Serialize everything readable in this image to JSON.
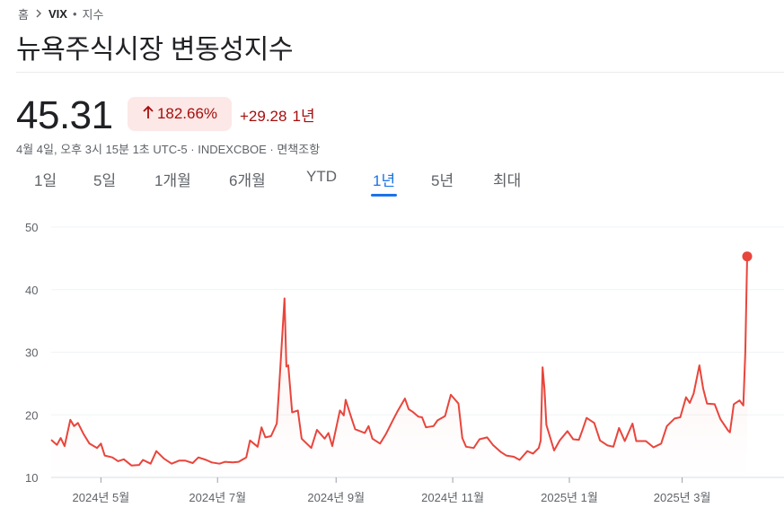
{
  "breadcrumb": {
    "home": "홈",
    "symbol": "VIX",
    "sep": "•",
    "category": "지수"
  },
  "title": "뉴욕주식시장 변동성지수",
  "quote": {
    "price": "45.31",
    "percent_change": "182.66%",
    "change": "+29.28",
    "period": "1년",
    "meta": "4월 4일, 오후 3시 15분 1초 UTC-5 · INDEXCBOE · 면책조항"
  },
  "tabs": [
    "1일",
    "5일",
    "1개월",
    "6개월",
    "YTD",
    "1년",
    "5년",
    "최대"
  ],
  "active_tab": "1년",
  "colors": {
    "line": "#e8453c",
    "accent": "#1a73e8",
    "negative_text": "#a50e0e",
    "badge_bg": "#fce8e6"
  },
  "icons": {
    "breadcrumb_separator": "chevron-right-icon",
    "change_direction": "arrow-up-icon"
  },
  "chart_data": {
    "type": "line",
    "ylim": [
      10,
      50
    ],
    "yticks": [
      10,
      20,
      30,
      40,
      50
    ],
    "xticks": [
      {
        "label": "2024년 5월",
        "date": "2024-05-01"
      },
      {
        "label": "2024년 7월",
        "date": "2024-07-01"
      },
      {
        "label": "2024년 9월",
        "date": "2024-09-01"
      },
      {
        "label": "2024년 11월",
        "date": "2024-11-01"
      },
      {
        "label": "2025년 1월",
        "date": "2025-01-01"
      },
      {
        "label": "2025년 3월",
        "date": "2025-03-01"
      }
    ],
    "grid": true,
    "end_marker": true,
    "series": [
      {
        "points": [
          [
            "2024-04-05",
            16.0
          ],
          [
            "2024-04-08",
            15.2
          ],
          [
            "2024-04-10",
            16.3
          ],
          [
            "2024-04-12",
            15.0
          ],
          [
            "2024-04-15",
            19.2
          ],
          [
            "2024-04-17",
            18.2
          ],
          [
            "2024-04-19",
            18.7
          ],
          [
            "2024-04-22",
            16.9
          ],
          [
            "2024-04-25",
            15.4
          ],
          [
            "2024-04-29",
            14.7
          ],
          [
            "2024-05-01",
            15.4
          ],
          [
            "2024-05-03",
            13.5
          ],
          [
            "2024-05-07",
            13.2
          ],
          [
            "2024-05-10",
            12.6
          ],
          [
            "2024-05-13",
            12.9
          ],
          [
            "2024-05-15",
            12.4
          ],
          [
            "2024-05-17",
            11.9
          ],
          [
            "2024-05-21",
            12.0
          ],
          [
            "2024-05-23",
            12.8
          ],
          [
            "2024-05-27",
            12.2
          ],
          [
            "2024-05-30",
            14.2
          ],
          [
            "2024-06-03",
            13.0
          ],
          [
            "2024-06-07",
            12.2
          ],
          [
            "2024-06-11",
            12.7
          ],
          [
            "2024-06-14",
            12.7
          ],
          [
            "2024-06-18",
            12.3
          ],
          [
            "2024-06-21",
            13.2
          ],
          [
            "2024-06-25",
            12.8
          ],
          [
            "2024-06-28",
            12.4
          ],
          [
            "2024-07-02",
            12.2
          ],
          [
            "2024-07-05",
            12.5
          ],
          [
            "2024-07-09",
            12.4
          ],
          [
            "2024-07-12",
            12.5
          ],
          [
            "2024-07-16",
            13.2
          ],
          [
            "2024-07-18",
            15.9
          ],
          [
            "2024-07-22",
            14.9
          ],
          [
            "2024-07-24",
            18.0
          ],
          [
            "2024-07-26",
            16.4
          ],
          [
            "2024-07-29",
            16.6
          ],
          [
            "2024-08-01",
            18.6
          ],
          [
            "2024-08-02",
            23.4
          ],
          [
            "2024-08-05",
            38.6
          ],
          [
            "2024-08-06",
            27.7
          ],
          [
            "2024-08-07",
            27.9
          ],
          [
            "2024-08-09",
            20.4
          ],
          [
            "2024-08-12",
            20.7
          ],
          [
            "2024-08-14",
            16.2
          ],
          [
            "2024-08-19",
            14.7
          ],
          [
            "2024-08-22",
            17.6
          ],
          [
            "2024-08-26",
            16.2
          ],
          [
            "2024-08-28",
            17.1
          ],
          [
            "2024-08-30",
            15.0
          ],
          [
            "2024-09-03",
            20.7
          ],
          [
            "2024-09-05",
            19.9
          ],
          [
            "2024-09-06",
            22.4
          ],
          [
            "2024-09-09",
            19.5
          ],
          [
            "2024-09-11",
            17.7
          ],
          [
            "2024-09-16",
            17.1
          ],
          [
            "2024-09-18",
            18.2
          ],
          [
            "2024-09-20",
            16.2
          ],
          [
            "2024-09-24",
            15.4
          ],
          [
            "2024-09-27",
            16.9
          ],
          [
            "2024-10-01",
            19.3
          ],
          [
            "2024-10-03",
            20.5
          ],
          [
            "2024-10-07",
            22.6
          ],
          [
            "2024-10-09",
            20.9
          ],
          [
            "2024-10-11",
            20.5
          ],
          [
            "2024-10-14",
            19.7
          ],
          [
            "2024-10-16",
            19.6
          ],
          [
            "2024-10-18",
            18.0
          ],
          [
            "2024-10-22",
            18.2
          ],
          [
            "2024-10-24",
            19.1
          ],
          [
            "2024-10-28",
            19.8
          ],
          [
            "2024-10-31",
            23.2
          ],
          [
            "2024-11-04",
            21.8
          ],
          [
            "2024-11-06",
            16.3
          ],
          [
            "2024-11-08",
            14.9
          ],
          [
            "2024-11-12",
            14.7
          ],
          [
            "2024-11-15",
            16.1
          ],
          [
            "2024-11-19",
            16.4
          ],
          [
            "2024-11-22",
            15.2
          ],
          [
            "2024-11-26",
            14.1
          ],
          [
            "2024-11-29",
            13.5
          ],
          [
            "2024-12-03",
            13.3
          ],
          [
            "2024-12-06",
            12.8
          ],
          [
            "2024-12-10",
            14.2
          ],
          [
            "2024-12-13",
            13.8
          ],
          [
            "2024-12-16",
            14.7
          ],
          [
            "2024-12-17",
            15.9
          ],
          [
            "2024-12-18",
            27.6
          ],
          [
            "2024-12-19",
            24.1
          ],
          [
            "2024-12-20",
            18.4
          ],
          [
            "2024-12-24",
            14.3
          ],
          [
            "2024-12-27",
            15.9
          ],
          [
            "2024-12-31",
            17.4
          ],
          [
            "2025-01-03",
            16.1
          ],
          [
            "2025-01-06",
            16.0
          ],
          [
            "2025-01-08",
            17.7
          ],
          [
            "2025-01-10",
            19.5
          ],
          [
            "2025-01-14",
            18.7
          ],
          [
            "2025-01-17",
            15.9
          ],
          [
            "2025-01-21",
            15.1
          ],
          [
            "2025-01-24",
            14.9
          ],
          [
            "2025-01-27",
            17.9
          ],
          [
            "2025-01-30",
            15.8
          ],
          [
            "2025-02-03",
            18.6
          ],
          [
            "2025-02-05",
            15.8
          ],
          [
            "2025-02-10",
            15.8
          ],
          [
            "2025-02-14",
            14.8
          ],
          [
            "2025-02-18",
            15.4
          ],
          [
            "2025-02-21",
            18.2
          ],
          [
            "2025-02-25",
            19.4
          ],
          [
            "2025-02-28",
            19.6
          ],
          [
            "2025-03-03",
            22.8
          ],
          [
            "2025-03-05",
            21.9
          ],
          [
            "2025-03-07",
            23.4
          ],
          [
            "2025-03-10",
            27.9
          ],
          [
            "2025-03-12",
            24.2
          ],
          [
            "2025-03-14",
            21.8
          ],
          [
            "2025-03-18",
            21.7
          ],
          [
            "2025-03-21",
            19.3
          ],
          [
            "2025-03-25",
            17.5
          ],
          [
            "2025-03-26",
            17.2
          ],
          [
            "2025-03-28",
            21.7
          ],
          [
            "2025-03-31",
            22.3
          ],
          [
            "2025-04-02",
            21.5
          ],
          [
            "2025-04-03",
            30.0
          ],
          [
            "2025-04-04",
            45.31
          ]
        ]
      }
    ]
  }
}
